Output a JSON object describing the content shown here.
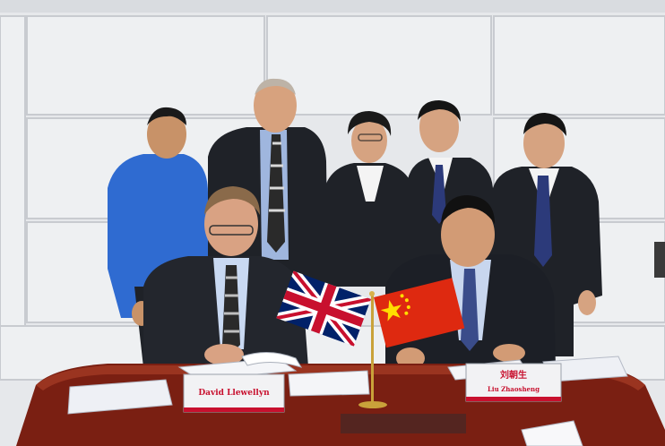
{
  "photo": {
    "placards": {
      "left_name": "David Llewellyn",
      "right_name_chinese": "刘朝生",
      "right_name_pinyin": "Liu Zhaosheng"
    }
  },
  "colors": {
    "wall": "#e6e8eb",
    "wall_seam": "#c8cbd0",
    "table": "#7a1f12",
    "table_highlight": "#9a3420",
    "suit": "#1f2228",
    "blue_shirt": "#2f6bd1",
    "placard_red": "#c8102e",
    "uk_blue": "#012169",
    "uk_red": "#C8102E",
    "china_red": "#DE2910",
    "china_yellow": "#FFDE00",
    "flagpole_gold": "#c9a23a"
  }
}
